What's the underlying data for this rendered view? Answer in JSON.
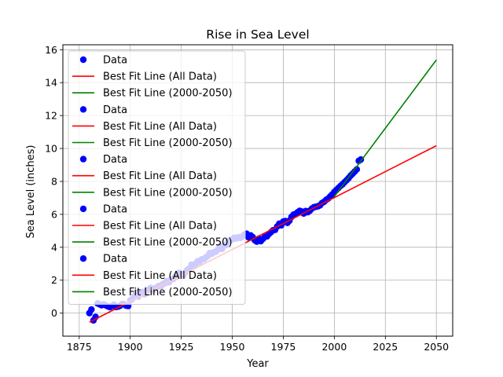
{
  "chart_data": {
    "type": "scatter",
    "title": "Rise in Sea Level",
    "xlabel": "Year",
    "ylabel": "Sea Level (inches)",
    "xlim": [
      1867,
      2058
    ],
    "ylim": [
      -1.4,
      16.3
    ],
    "xticks": [
      1875,
      1900,
      1925,
      1950,
      1975,
      2000,
      2025,
      2050
    ],
    "yticks": [
      0,
      2,
      4,
      6,
      8,
      10,
      12,
      14,
      16
    ],
    "grid": true,
    "legend_position": "top-left",
    "colors": {
      "data": "#0000ff",
      "fit_all": "#ff0000",
      "fit_recent": "#008000",
      "grid": "#b0b0b0"
    },
    "legend_entries": [
      "Data",
      "Best Fit Line (All Data)",
      "Best Fit Line (2000-2050)",
      "Data",
      "Best Fit Line (All Data)",
      "Best Fit Line (2000-2050)",
      "Data",
      "Best Fit Line (All Data)",
      "Best Fit Line (2000-2050)",
      "Data",
      "Best Fit Line (All Data)",
      "Best Fit Line (2000-2050)",
      "Data",
      "Best Fit Line (All Data)",
      "Best Fit Line (2000-2050)"
    ],
    "series": [
      {
        "name": "Data",
        "kind": "scatter",
        "x": [
          1880,
          1881,
          1882,
          1883,
          1884,
          1885,
          1886,
          1887,
          1888,
          1889,
          1890,
          1891,
          1892,
          1893,
          1894,
          1895,
          1896,
          1897,
          1898,
          1899,
          1900,
          1901,
          1902,
          1903,
          1904,
          1905,
          1906,
          1907,
          1908,
          1909,
          1910,
          1911,
          1912,
          1913,
          1914,
          1915,
          1916,
          1917,
          1918,
          1919,
          1920,
          1921,
          1922,
          1923,
          1924,
          1925,
          1926,
          1927,
          1928,
          1929,
          1930,
          1931,
          1932,
          1933,
          1934,
          1935,
          1936,
          1937,
          1938,
          1939,
          1940,
          1941,
          1942,
          1943,
          1944,
          1945,
          1946,
          1947,
          1948,
          1949,
          1950,
          1951,
          1952,
          1953,
          1954,
          1955,
          1956,
          1957,
          1958,
          1959,
          1960,
          1961,
          1962,
          1963,
          1964,
          1965,
          1966,
          1967,
          1968,
          1969,
          1970,
          1971,
          1972,
          1973,
          1974,
          1975,
          1976,
          1977,
          1978,
          1979,
          1980,
          1981,
          1982,
          1983,
          1984,
          1985,
          1986,
          1987,
          1988,
          1989,
          1990,
          1991,
          1992,
          1993,
          1994,
          1995,
          1996,
          1997,
          1998,
          1999,
          2000,
          2001,
          2002,
          2003,
          2004,
          2005,
          2006,
          2007,
          2008,
          2009,
          2010,
          2011,
          2012,
          2013
        ],
        "values": [
          0.0,
          0.22,
          -0.44,
          -0.23,
          0.59,
          0.53,
          0.48,
          0.53,
          0.47,
          0.41,
          0.36,
          0.43,
          0.51,
          0.37,
          0.39,
          0.44,
          0.56,
          0.54,
          0.45,
          0.43,
          0.77,
          0.86,
          1.02,
          1.21,
          1.0,
          1.25,
          1.28,
          1.14,
          1.38,
          1.42,
          1.53,
          1.38,
          1.49,
          1.56,
          1.65,
          1.63,
          1.76,
          1.81,
          1.95,
          1.87,
          2.04,
          2.07,
          2.19,
          2.31,
          2.45,
          2.34,
          2.28,
          2.48,
          2.64,
          2.7,
          2.94,
          2.9,
          2.99,
          3.15,
          3.11,
          3.26,
          3.27,
          3.38,
          3.46,
          3.65,
          3.61,
          3.7,
          3.74,
          3.86,
          4.05,
          3.9,
          4.11,
          4.13,
          4.36,
          4.44,
          4.47,
          4.58,
          4.53,
          4.61,
          4.57,
          4.67,
          4.78,
          4.82,
          4.6,
          4.72,
          4.62,
          4.43,
          4.34,
          4.52,
          4.37,
          4.51,
          4.63,
          4.66,
          4.81,
          4.92,
          5.03,
          5.06,
          5.26,
          5.43,
          5.33,
          5.56,
          5.59,
          5.48,
          5.61,
          5.84,
          5.98,
          6.03,
          6.12,
          6.21,
          6.17,
          6.05,
          6.2,
          6.13,
          6.22,
          6.35,
          6.43,
          6.46,
          6.49,
          6.55,
          6.69,
          6.76,
          6.88,
          6.96,
          7.09,
          7.21,
          7.36,
          7.48,
          7.6,
          7.72,
          7.82,
          7.95,
          8.07,
          8.2,
          8.35,
          8.47,
          8.6,
          8.73,
          9.25,
          9.33
        ]
      },
      {
        "name": "Best Fit Line (All Data)",
        "kind": "line",
        "x": [
          1880,
          2050
        ],
        "values": [
          -0.55,
          10.17
        ]
      },
      {
        "name": "Best Fit Line (2000-2050)",
        "kind": "line",
        "x": [
          2000,
          2050
        ],
        "values": [
          7.08,
          15.38
        ]
      }
    ]
  }
}
